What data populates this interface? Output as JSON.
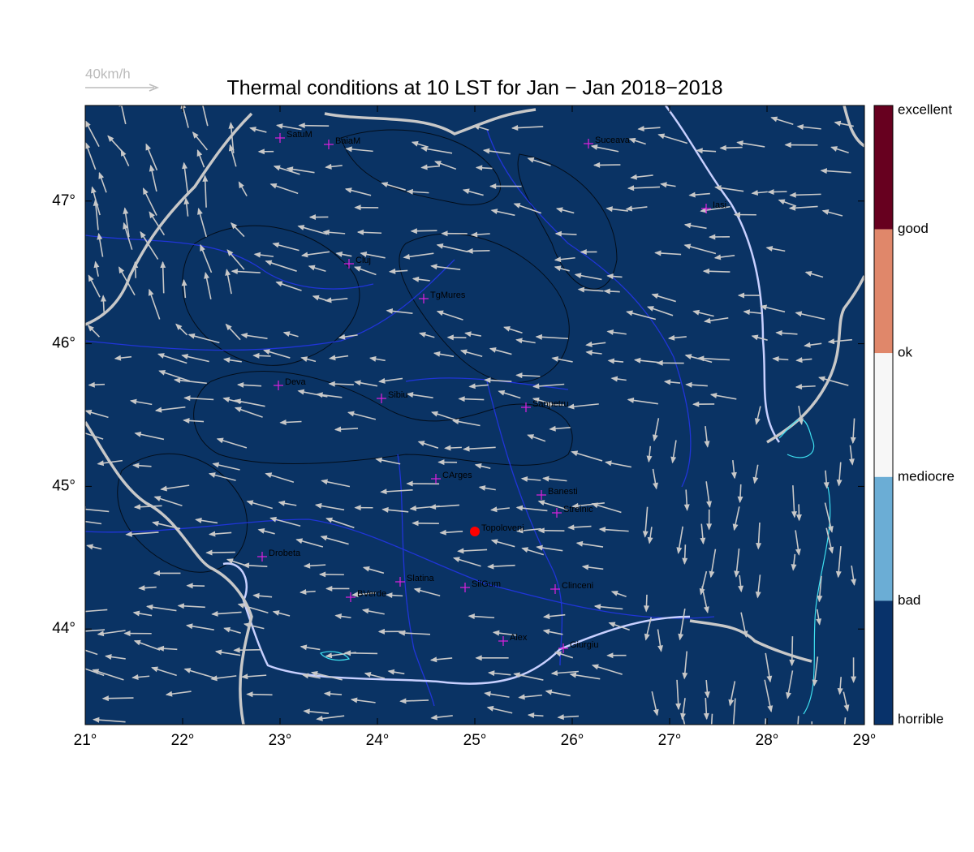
{
  "title": "Thermal conditions at 10 LST for Jan − Jan  2018−2018",
  "wind_scale_label": "40km/h",
  "map": {
    "background": "#0a3364",
    "xlim": [
      21,
      29
    ],
    "ylim": [
      43.33,
      47.67
    ],
    "xticks": [
      {
        "value": 21,
        "label": "21°"
      },
      {
        "value": 22,
        "label": "22°"
      },
      {
        "value": 23,
        "label": "23°"
      },
      {
        "value": 24,
        "label": "24°"
      },
      {
        "value": 25,
        "label": "25°"
      },
      {
        "value": 26,
        "label": "26°"
      },
      {
        "value": 27,
        "label": "27°"
      },
      {
        "value": 28,
        "label": "28°"
      },
      {
        "value": 29,
        "label": "29°"
      }
    ],
    "yticks": [
      {
        "value": 44,
        "label": "44°"
      },
      {
        "value": 45,
        "label": "45°"
      },
      {
        "value": 46,
        "label": "46°"
      },
      {
        "value": 47,
        "label": "47°"
      }
    ],
    "cities": [
      "SatuM",
      "BaiaM",
      "Suceava",
      "Iasi",
      "Cluj",
      "TgMures",
      "Deva",
      "Sibiu",
      "Sanpetru",
      "CArges",
      "Banesti",
      "Streinic",
      "Topoloveni",
      "Drobeta",
      "Slatina",
      "SilGum",
      "Clinceni",
      "BVerde",
      "Alex",
      "Giurgiu"
    ]
  },
  "colorbar": {
    "labels": [
      "excellent",
      "good",
      "ok",
      "mediocre",
      "bad",
      "horrible"
    ],
    "colors": [
      "#67001f",
      "#e0876a",
      "#f7f7f7",
      "#6badd5",
      "#08326a"
    ]
  }
}
